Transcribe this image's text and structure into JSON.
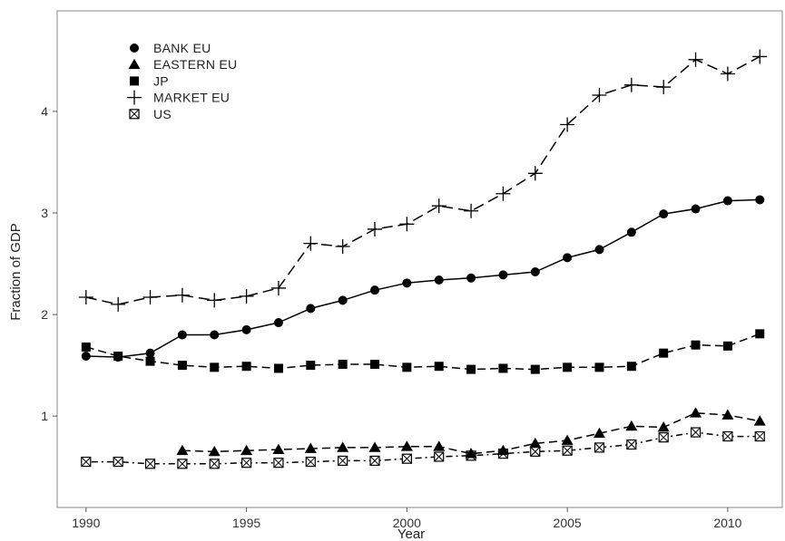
{
  "chart_data": {
    "type": "line",
    "xlabel": "Year",
    "ylabel": "Fraction of GDP",
    "xlim": [
      1989.1,
      2011.7
    ],
    "ylim": [
      0.1,
      4.99
    ],
    "x_ticks": [
      1990,
      1995,
      2000,
      2005,
      2010
    ],
    "y_ticks": [
      1,
      2,
      3,
      4
    ],
    "grid": false,
    "legend_placement": "top-left",
    "series": [
      {
        "name": "BANK EU",
        "marker": "circle",
        "dash": "solid",
        "x": [
          1990,
          1991,
          1992,
          1993,
          1994,
          1995,
          1996,
          1997,
          1998,
          1999,
          2000,
          2001,
          2002,
          2003,
          2004,
          2005,
          2006,
          2007,
          2008,
          2009,
          2010,
          2011
        ],
        "y": [
          1.59,
          1.58,
          1.62,
          1.8,
          1.8,
          1.85,
          1.92,
          2.06,
          2.14,
          2.24,
          2.31,
          2.34,
          2.36,
          2.39,
          2.42,
          2.56,
          2.64,
          2.81,
          2.99,
          3.04,
          3.12,
          3.13
        ]
      },
      {
        "name": "EASTERN EU",
        "marker": "triangle",
        "dash": "dashed",
        "x": [
          1993,
          1994,
          1995,
          1996,
          1997,
          1998,
          1999,
          2000,
          2001,
          2002,
          2003,
          2004,
          2005,
          2006,
          2007,
          2008,
          2009,
          2010,
          2011
        ],
        "y": [
          0.66,
          0.65,
          0.66,
          0.67,
          0.68,
          0.69,
          0.69,
          0.7,
          0.7,
          0.63,
          0.66,
          0.73,
          0.76,
          0.83,
          0.9,
          0.89,
          1.03,
          1.01,
          0.95
        ]
      },
      {
        "name": "JP",
        "marker": "square",
        "dash": "dashed",
        "x": [
          1990,
          1991,
          1992,
          1993,
          1994,
          1995,
          1996,
          1997,
          1998,
          1999,
          2000,
          2001,
          2002,
          2003,
          2004,
          2005,
          2006,
          2007,
          2008,
          2009,
          2010,
          2011
        ],
        "y": [
          1.68,
          1.59,
          1.54,
          1.5,
          1.48,
          1.49,
          1.47,
          1.5,
          1.51,
          1.51,
          1.48,
          1.49,
          1.46,
          1.47,
          1.46,
          1.48,
          1.48,
          1.49,
          1.62,
          1.7,
          1.69,
          1.81
        ]
      },
      {
        "name": "MARKET EU",
        "marker": "plus",
        "dash": "longdash",
        "x": [
          1990,
          1991,
          1992,
          1993,
          1994,
          1995,
          1996,
          1997,
          1998,
          1999,
          2000,
          2001,
          2002,
          2003,
          2004,
          2005,
          2006,
          2007,
          2008,
          2009,
          2010,
          2011
        ],
        "y": [
          2.17,
          2.1,
          2.17,
          2.19,
          2.14,
          2.18,
          2.26,
          2.7,
          2.67,
          2.84,
          2.89,
          3.07,
          3.02,
          3.19,
          3.39,
          3.87,
          4.16,
          4.26,
          4.24,
          4.51,
          4.37,
          4.54
        ]
      },
      {
        "name": "US",
        "marker": "boxcross",
        "dash": "dotdash",
        "x": [
          1990,
          1991,
          1992,
          1993,
          1994,
          1995,
          1996,
          1997,
          1998,
          1999,
          2000,
          2001,
          2002,
          2003,
          2004,
          2005,
          2006,
          2007,
          2008,
          2009,
          2010,
          2011
        ],
        "y": [
          0.55,
          0.55,
          0.53,
          0.53,
          0.53,
          0.54,
          0.54,
          0.55,
          0.56,
          0.56,
          0.58,
          0.6,
          0.61,
          0.63,
          0.65,
          0.66,
          0.69,
          0.72,
          0.79,
          0.84,
          0.8,
          0.8
        ]
      }
    ]
  }
}
